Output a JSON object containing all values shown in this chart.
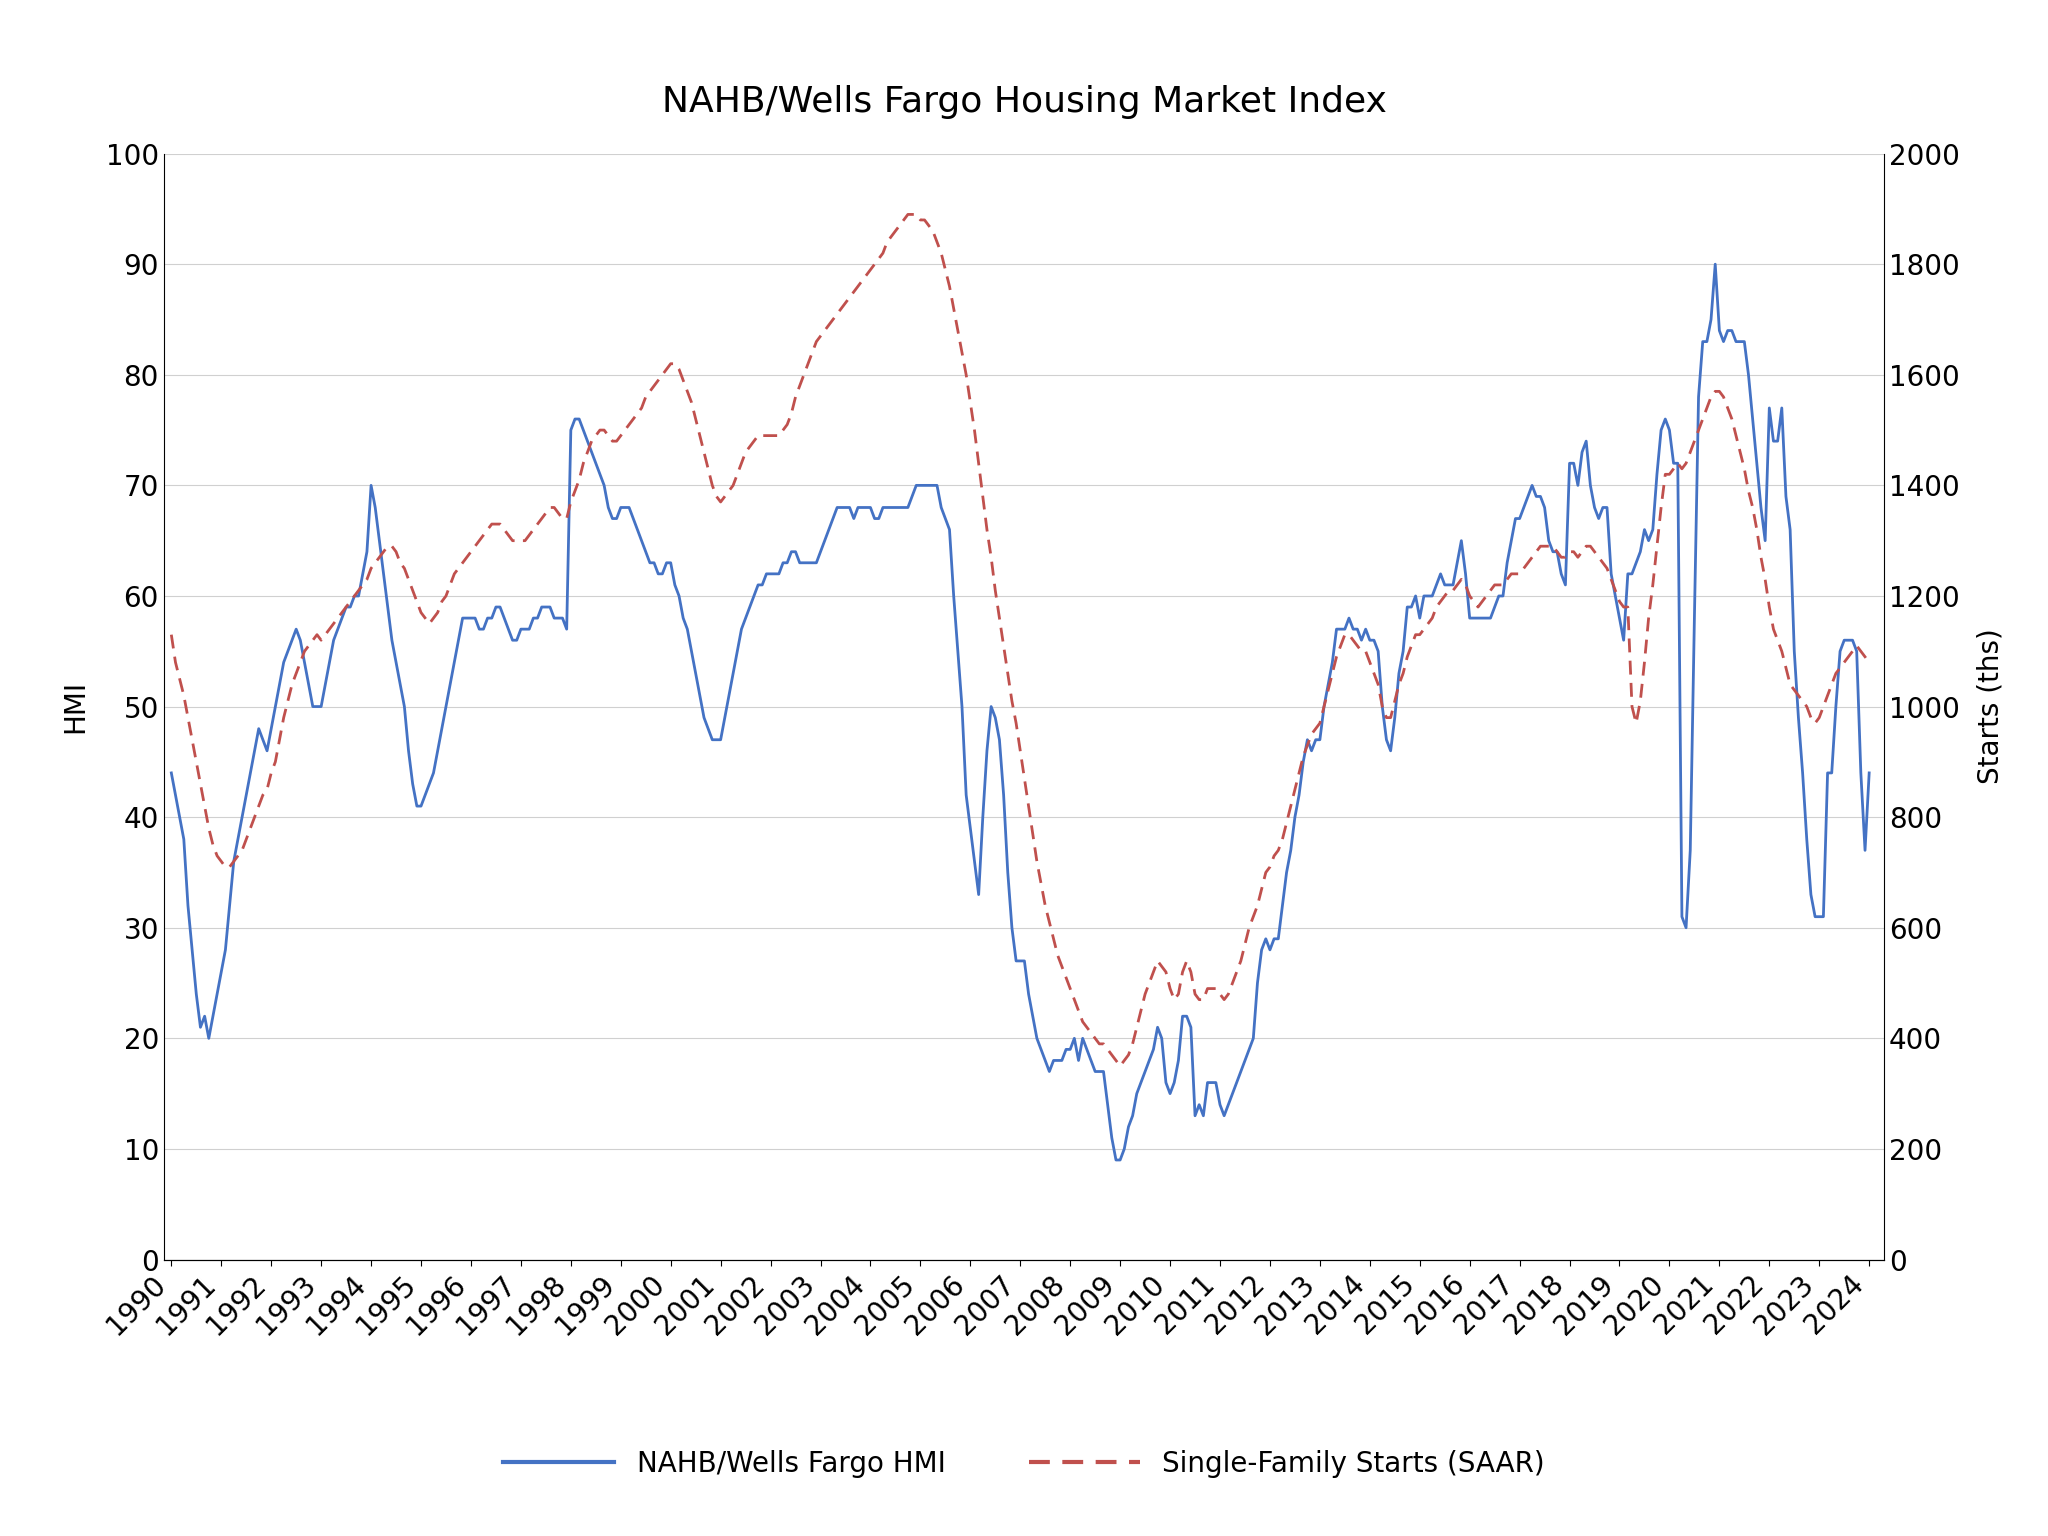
{
  "title": "NAHB/Wells Fargo Housing Market Index",
  "ylabel_left": "HMI",
  "ylabel_right": "Starts (ths)",
  "legend_hmi": "NAHB/Wells Fargo HMI",
  "legend_starts": "Single-Family Starts (SAAR)",
  "hmi_color": "#4472C4",
  "starts_color": "#C0504D",
  "background_color": "#FFFFFF",
  "ylim_left": [
    0,
    100
  ],
  "ylim_right": [
    0,
    2000
  ],
  "yticks_left": [
    0,
    10,
    20,
    30,
    40,
    50,
    60,
    70,
    80,
    90,
    100
  ],
  "yticks_right": [
    0,
    200,
    400,
    600,
    800,
    1000,
    1200,
    1400,
    1600,
    1800,
    2000
  ],
  "hmi_dates": [
    1990.0,
    1990.083,
    1990.167,
    1990.25,
    1990.333,
    1990.417,
    1990.5,
    1990.583,
    1990.667,
    1990.75,
    1990.833,
    1990.917,
    1991.0,
    1991.083,
    1991.167,
    1991.25,
    1991.333,
    1991.417,
    1991.5,
    1991.583,
    1991.667,
    1991.75,
    1991.833,
    1991.917,
    1992.0,
    1992.083,
    1992.167,
    1992.25,
    1992.333,
    1992.417,
    1992.5,
    1992.583,
    1992.667,
    1992.75,
    1992.833,
    1992.917,
    1993.0,
    1993.083,
    1993.167,
    1993.25,
    1993.333,
    1993.417,
    1993.5,
    1993.583,
    1993.667,
    1993.75,
    1993.833,
    1993.917,
    1994.0,
    1994.083,
    1994.167,
    1994.25,
    1994.333,
    1994.417,
    1994.5,
    1994.583,
    1994.667,
    1994.75,
    1994.833,
    1994.917,
    1995.0,
    1995.083,
    1995.167,
    1995.25,
    1995.333,
    1995.417,
    1995.5,
    1995.583,
    1995.667,
    1995.75,
    1995.833,
    1995.917,
    1996.0,
    1996.083,
    1996.167,
    1996.25,
    1996.333,
    1996.417,
    1996.5,
    1996.583,
    1996.667,
    1996.75,
    1996.833,
    1996.917,
    1997.0,
    1997.083,
    1997.167,
    1997.25,
    1997.333,
    1997.417,
    1997.5,
    1997.583,
    1997.667,
    1997.75,
    1997.833,
    1997.917,
    1998.0,
    1998.083,
    1998.167,
    1998.25,
    1998.333,
    1998.417,
    1998.5,
    1998.583,
    1998.667,
    1998.75,
    1998.833,
    1998.917,
    1999.0,
    1999.083,
    1999.167,
    1999.25,
    1999.333,
    1999.417,
    1999.5,
    1999.583,
    1999.667,
    1999.75,
    1999.833,
    1999.917,
    2000.0,
    2000.083,
    2000.167,
    2000.25,
    2000.333,
    2000.417,
    2000.5,
    2000.583,
    2000.667,
    2000.75,
    2000.833,
    2000.917,
    2001.0,
    2001.083,
    2001.167,
    2001.25,
    2001.333,
    2001.417,
    2001.5,
    2001.583,
    2001.667,
    2001.75,
    2001.833,
    2001.917,
    2002.0,
    2002.083,
    2002.167,
    2002.25,
    2002.333,
    2002.417,
    2002.5,
    2002.583,
    2002.667,
    2002.75,
    2002.833,
    2002.917,
    2003.0,
    2003.083,
    2003.167,
    2003.25,
    2003.333,
    2003.417,
    2003.5,
    2003.583,
    2003.667,
    2003.75,
    2003.833,
    2003.917,
    2004.0,
    2004.083,
    2004.167,
    2004.25,
    2004.333,
    2004.417,
    2004.5,
    2004.583,
    2004.667,
    2004.75,
    2004.833,
    2004.917,
    2005.0,
    2005.083,
    2005.167,
    2005.25,
    2005.333,
    2005.417,
    2005.5,
    2005.583,
    2005.667,
    2005.75,
    2005.833,
    2005.917,
    2006.0,
    2006.083,
    2006.167,
    2006.25,
    2006.333,
    2006.417,
    2006.5,
    2006.583,
    2006.667,
    2006.75,
    2006.833,
    2006.917,
    2007.0,
    2007.083,
    2007.167,
    2007.25,
    2007.333,
    2007.417,
    2007.5,
    2007.583,
    2007.667,
    2007.75,
    2007.833,
    2007.917,
    2008.0,
    2008.083,
    2008.167,
    2008.25,
    2008.333,
    2008.417,
    2008.5,
    2008.583,
    2008.667,
    2008.75,
    2008.833,
    2008.917,
    2009.0,
    2009.083,
    2009.167,
    2009.25,
    2009.333,
    2009.417,
    2009.5,
    2009.583,
    2009.667,
    2009.75,
    2009.833,
    2009.917,
    2010.0,
    2010.083,
    2010.167,
    2010.25,
    2010.333,
    2010.417,
    2010.5,
    2010.583,
    2010.667,
    2010.75,
    2010.833,
    2010.917,
    2011.0,
    2011.083,
    2011.167,
    2011.25,
    2011.333,
    2011.417,
    2011.5,
    2011.583,
    2011.667,
    2011.75,
    2011.833,
    2011.917,
    2012.0,
    2012.083,
    2012.167,
    2012.25,
    2012.333,
    2012.417,
    2012.5,
    2012.583,
    2012.667,
    2012.75,
    2012.833,
    2012.917,
    2013.0,
    2013.083,
    2013.167,
    2013.25,
    2013.333,
    2013.417,
    2013.5,
    2013.583,
    2013.667,
    2013.75,
    2013.833,
    2013.917,
    2014.0,
    2014.083,
    2014.167,
    2014.25,
    2014.333,
    2014.417,
    2014.5,
    2014.583,
    2014.667,
    2014.75,
    2014.833,
    2014.917,
    2015.0,
    2015.083,
    2015.167,
    2015.25,
    2015.333,
    2015.417,
    2015.5,
    2015.583,
    2015.667,
    2015.75,
    2015.833,
    2015.917,
    2016.0,
    2016.083,
    2016.167,
    2016.25,
    2016.333,
    2016.417,
    2016.5,
    2016.583,
    2016.667,
    2016.75,
    2016.833,
    2016.917,
    2017.0,
    2017.083,
    2017.167,
    2017.25,
    2017.333,
    2017.417,
    2017.5,
    2017.583,
    2017.667,
    2017.75,
    2017.833,
    2017.917,
    2018.0,
    2018.083,
    2018.167,
    2018.25,
    2018.333,
    2018.417,
    2018.5,
    2018.583,
    2018.667,
    2018.75,
    2018.833,
    2018.917,
    2019.0,
    2019.083,
    2019.167,
    2019.25,
    2019.333,
    2019.417,
    2019.5,
    2019.583,
    2019.667,
    2019.75,
    2019.833,
    2019.917,
    2020.0,
    2020.083,
    2020.167,
    2020.25,
    2020.333,
    2020.417,
    2020.5,
    2020.583,
    2020.667,
    2020.75,
    2020.833,
    2020.917,
    2021.0,
    2021.083,
    2021.167,
    2021.25,
    2021.333,
    2021.417,
    2021.5,
    2021.583,
    2021.667,
    2021.75,
    2021.833,
    2021.917,
    2022.0,
    2022.083,
    2022.167,
    2022.25,
    2022.333,
    2022.417,
    2022.5,
    2022.583,
    2022.667,
    2022.75,
    2022.833,
    2022.917,
    2023.0,
    2023.083,
    2023.167,
    2023.25,
    2023.333,
    2023.417,
    2023.5,
    2023.583,
    2023.667,
    2023.75,
    2023.833,
    2023.917,
    2024.0
  ],
  "hmi_values": [
    44,
    42,
    40,
    38,
    32,
    28,
    24,
    21,
    22,
    20,
    22,
    24,
    26,
    28,
    32,
    36,
    38,
    40,
    42,
    44,
    46,
    48,
    47,
    46,
    48,
    50,
    52,
    54,
    55,
    56,
    57,
    56,
    54,
    52,
    50,
    50,
    50,
    52,
    54,
    56,
    57,
    58,
    59,
    59,
    60,
    60,
    62,
    64,
    70,
    68,
    65,
    62,
    59,
    56,
    54,
    52,
    50,
    46,
    43,
    41,
    41,
    42,
    43,
    44,
    46,
    48,
    50,
    52,
    54,
    56,
    58,
    58,
    58,
    58,
    57,
    57,
    58,
    58,
    59,
    59,
    58,
    57,
    56,
    56,
    57,
    57,
    57,
    58,
    58,
    59,
    59,
    59,
    58,
    58,
    58,
    57,
    75,
    76,
    76,
    75,
    74,
    73,
    72,
    71,
    70,
    68,
    67,
    67,
    68,
    68,
    68,
    67,
    66,
    65,
    64,
    63,
    63,
    62,
    62,
    63,
    63,
    61,
    60,
    58,
    57,
    55,
    53,
    51,
    49,
    48,
    47,
    47,
    47,
    49,
    51,
    53,
    55,
    57,
    58,
    59,
    60,
    61,
    61,
    62,
    62,
    62,
    62,
    63,
    63,
    64,
    64,
    63,
    63,
    63,
    63,
    63,
    64,
    65,
    66,
    67,
    68,
    68,
    68,
    68,
    67,
    68,
    68,
    68,
    68,
    67,
    67,
    68,
    68,
    68,
    68,
    68,
    68,
    68,
    69,
    70,
    70,
    70,
    70,
    70,
    70,
    68,
    67,
    66,
    60,
    55,
    50,
    42,
    39,
    36,
    33,
    40,
    46,
    50,
    49,
    47,
    42,
    35,
    30,
    27,
    27,
    27,
    24,
    22,
    20,
    19,
    18,
    17,
    18,
    18,
    18,
    19,
    19,
    20,
    18,
    20,
    19,
    18,
    17,
    17,
    17,
    14,
    11,
    9,
    9,
    10,
    12,
    13,
    15,
    16,
    17,
    18,
    19,
    21,
    20,
    16,
    15,
    16,
    18,
    22,
    22,
    21,
    13,
    14,
    13,
    16,
    16,
    16,
    14,
    13,
    14,
    15,
    16,
    17,
    18,
    19,
    20,
    25,
    28,
    29,
    28,
    29,
    29,
    32,
    35,
    37,
    40,
    42,
    45,
    47,
    46,
    47,
    47,
    50,
    52,
    54,
    57,
    57,
    57,
    58,
    57,
    57,
    56,
    57,
    56,
    56,
    55,
    50,
    47,
    46,
    49,
    53,
    55,
    59,
    59,
    60,
    58,
    60,
    60,
    60,
    61,
    62,
    61,
    61,
    61,
    63,
    65,
    62,
    58,
    58,
    58,
    58,
    58,
    58,
    59,
    60,
    60,
    63,
    65,
    67,
    67,
    68,
    69,
    70,
    69,
    69,
    68,
    65,
    64,
    64,
    62,
    61,
    72,
    72,
    70,
    73,
    74,
    70,
    68,
    67,
    68,
    68,
    62,
    60,
    58,
    56,
    62,
    62,
    63,
    64,
    66,
    65,
    66,
    71,
    75,
    76,
    75,
    72,
    72,
    31,
    30,
    37,
    58,
    78,
    83,
    83,
    85,
    90,
    84,
    83,
    84,
    84,
    83,
    83,
    83,
    80,
    76,
    72,
    68,
    65,
    77,
    74,
    74,
    77,
    69,
    66,
    55,
    49,
    44,
    38,
    33,
    31,
    31,
    31,
    44,
    44,
    50,
    55,
    56,
    56,
    56,
    55,
    44,
    37,
    44
  ],
  "starts_dates": [
    1990.0,
    1990.083,
    1990.167,
    1990.25,
    1990.333,
    1990.417,
    1990.5,
    1990.583,
    1990.667,
    1990.75,
    1990.833,
    1990.917,
    1991.0,
    1991.083,
    1991.167,
    1991.25,
    1991.333,
    1991.417,
    1991.5,
    1991.583,
    1991.667,
    1991.75,
    1991.833,
    1991.917,
    1992.0,
    1992.083,
    1992.167,
    1992.25,
    1992.333,
    1992.417,
    1992.5,
    1992.583,
    1992.667,
    1992.75,
    1992.833,
    1992.917,
    1993.0,
    1993.083,
    1993.167,
    1993.25,
    1993.333,
    1993.417,
    1993.5,
    1993.583,
    1993.667,
    1993.75,
    1993.833,
    1993.917,
    1994.0,
    1994.083,
    1994.167,
    1994.25,
    1994.333,
    1994.417,
    1994.5,
    1994.583,
    1994.667,
    1994.75,
    1994.833,
    1994.917,
    1995.0,
    1995.083,
    1995.167,
    1995.25,
    1995.333,
    1995.417,
    1995.5,
    1995.583,
    1995.667,
    1995.75,
    1995.833,
    1995.917,
    1996.0,
    1996.083,
    1996.167,
    1996.25,
    1996.333,
    1996.417,
    1996.5,
    1996.583,
    1996.667,
    1996.75,
    1996.833,
    1996.917,
    1997.0,
    1997.083,
    1997.167,
    1997.25,
    1997.333,
    1997.417,
    1997.5,
    1997.583,
    1997.667,
    1997.75,
    1997.833,
    1997.917,
    1998.0,
    1998.083,
    1998.167,
    1998.25,
    1998.333,
    1998.417,
    1998.5,
    1998.583,
    1998.667,
    1998.75,
    1998.833,
    1998.917,
    1999.0,
    1999.083,
    1999.167,
    1999.25,
    1999.333,
    1999.417,
    1999.5,
    1999.583,
    1999.667,
    1999.75,
    1999.833,
    1999.917,
    2000.0,
    2000.083,
    2000.167,
    2000.25,
    2000.333,
    2000.417,
    2000.5,
    2000.583,
    2000.667,
    2000.75,
    2000.833,
    2000.917,
    2001.0,
    2001.083,
    2001.167,
    2001.25,
    2001.333,
    2001.417,
    2001.5,
    2001.583,
    2001.667,
    2001.75,
    2001.833,
    2001.917,
    2002.0,
    2002.083,
    2002.167,
    2002.25,
    2002.333,
    2002.417,
    2002.5,
    2002.583,
    2002.667,
    2002.75,
    2002.833,
    2002.917,
    2003.0,
    2003.083,
    2003.167,
    2003.25,
    2003.333,
    2003.417,
    2003.5,
    2003.583,
    2003.667,
    2003.75,
    2003.833,
    2003.917,
    2004.0,
    2004.083,
    2004.167,
    2004.25,
    2004.333,
    2004.417,
    2004.5,
    2004.583,
    2004.667,
    2004.75,
    2004.833,
    2004.917,
    2005.0,
    2005.083,
    2005.167,
    2005.25,
    2005.333,
    2005.417,
    2005.5,
    2005.583,
    2005.667,
    2005.75,
    2005.833,
    2005.917,
    2006.0,
    2006.083,
    2006.167,
    2006.25,
    2006.333,
    2006.417,
    2006.5,
    2006.583,
    2006.667,
    2006.75,
    2006.833,
    2006.917,
    2007.0,
    2007.083,
    2007.167,
    2007.25,
    2007.333,
    2007.417,
    2007.5,
    2007.583,
    2007.667,
    2007.75,
    2007.833,
    2007.917,
    2008.0,
    2008.083,
    2008.167,
    2008.25,
    2008.333,
    2008.417,
    2008.5,
    2008.583,
    2008.667,
    2008.75,
    2008.833,
    2008.917,
    2009.0,
    2009.083,
    2009.167,
    2009.25,
    2009.333,
    2009.417,
    2009.5,
    2009.583,
    2009.667,
    2009.75,
    2009.833,
    2009.917,
    2010.0,
    2010.083,
    2010.167,
    2010.25,
    2010.333,
    2010.417,
    2010.5,
    2010.583,
    2010.667,
    2010.75,
    2010.833,
    2010.917,
    2011.0,
    2011.083,
    2011.167,
    2011.25,
    2011.333,
    2011.417,
    2011.5,
    2011.583,
    2011.667,
    2011.75,
    2011.833,
    2011.917,
    2012.0,
    2012.083,
    2012.167,
    2012.25,
    2012.333,
    2012.417,
    2012.5,
    2012.583,
    2012.667,
    2012.75,
    2012.833,
    2012.917,
    2013.0,
    2013.083,
    2013.167,
    2013.25,
    2013.333,
    2013.417,
    2013.5,
    2013.583,
    2013.667,
    2013.75,
    2013.833,
    2013.917,
    2014.0,
    2014.083,
    2014.167,
    2014.25,
    2014.333,
    2014.417,
    2014.5,
    2014.583,
    2014.667,
    2014.75,
    2014.833,
    2014.917,
    2015.0,
    2015.083,
    2015.167,
    2015.25,
    2015.333,
    2015.417,
    2015.5,
    2015.583,
    2015.667,
    2015.75,
    2015.833,
    2015.917,
    2016.0,
    2016.083,
    2016.167,
    2016.25,
    2016.333,
    2016.417,
    2016.5,
    2016.583,
    2016.667,
    2016.75,
    2016.833,
    2016.917,
    2017.0,
    2017.083,
    2017.167,
    2017.25,
    2017.333,
    2017.417,
    2017.5,
    2017.583,
    2017.667,
    2017.75,
    2017.833,
    2017.917,
    2018.0,
    2018.083,
    2018.167,
    2018.25,
    2018.333,
    2018.417,
    2018.5,
    2018.583,
    2018.667,
    2018.75,
    2018.833,
    2018.917,
    2019.0,
    2019.083,
    2019.167,
    2019.25,
    2019.333,
    2019.417,
    2019.5,
    2019.583,
    2019.667,
    2019.75,
    2019.833,
    2019.917,
    2020.0,
    2020.083,
    2020.167,
    2020.25,
    2020.333,
    2020.417,
    2020.5,
    2020.583,
    2020.667,
    2020.75,
    2020.833,
    2020.917,
    2021.0,
    2021.083,
    2021.167,
    2021.25,
    2021.333,
    2021.417,
    2021.5,
    2021.583,
    2021.667,
    2021.75,
    2021.833,
    2021.917,
    2022.0,
    2022.083,
    2022.167,
    2022.25,
    2022.333,
    2022.417,
    2022.5,
    2022.583,
    2022.667,
    2022.75,
    2022.833,
    2022.917,
    2023.0,
    2023.083,
    2023.167,
    2023.25,
    2023.333,
    2023.417,
    2023.5,
    2023.583,
    2023.667,
    2023.75,
    2023.833,
    2023.917,
    2024.0
  ],
  "starts_values": [
    1130,
    1080,
    1050,
    1020,
    980,
    940,
    900,
    860,
    820,
    780,
    750,
    730,
    720,
    710,
    710,
    720,
    730,
    740,
    760,
    780,
    800,
    820,
    840,
    850,
    880,
    900,
    940,
    980,
    1010,
    1040,
    1060,
    1080,
    1100,
    1110,
    1120,
    1130,
    1120,
    1130,
    1140,
    1150,
    1160,
    1170,
    1180,
    1190,
    1200,
    1210,
    1220,
    1230,
    1250,
    1260,
    1270,
    1280,
    1290,
    1290,
    1280,
    1260,
    1250,
    1230,
    1210,
    1190,
    1170,
    1160,
    1150,
    1160,
    1170,
    1190,
    1200,
    1220,
    1240,
    1250,
    1260,
    1270,
    1280,
    1290,
    1300,
    1310,
    1320,
    1330,
    1330,
    1330,
    1320,
    1310,
    1300,
    1300,
    1300,
    1300,
    1310,
    1320,
    1330,
    1340,
    1350,
    1360,
    1360,
    1350,
    1340,
    1340,
    1370,
    1390,
    1410,
    1440,
    1460,
    1480,
    1490,
    1500,
    1500,
    1490,
    1480,
    1480,
    1490,
    1500,
    1510,
    1520,
    1530,
    1540,
    1560,
    1570,
    1580,
    1590,
    1600,
    1610,
    1620,
    1620,
    1610,
    1590,
    1570,
    1550,
    1520,
    1490,
    1460,
    1430,
    1400,
    1380,
    1370,
    1380,
    1390,
    1400,
    1420,
    1440,
    1460,
    1470,
    1480,
    1490,
    1490,
    1490,
    1490,
    1490,
    1490,
    1500,
    1510,
    1530,
    1560,
    1580,
    1600,
    1620,
    1640,
    1660,
    1670,
    1680,
    1690,
    1700,
    1710,
    1720,
    1730,
    1740,
    1750,
    1760,
    1770,
    1780,
    1790,
    1800,
    1810,
    1820,
    1840,
    1850,
    1860,
    1870,
    1880,
    1890,
    1890,
    1890,
    1880,
    1880,
    1870,
    1860,
    1840,
    1820,
    1790,
    1760,
    1720,
    1680,
    1640,
    1600,
    1550,
    1500,
    1440,
    1380,
    1320,
    1270,
    1210,
    1160,
    1110,
    1060,
    1010,
    970,
    920,
    870,
    820,
    770,
    720,
    680,
    640,
    610,
    580,
    550,
    530,
    510,
    490,
    470,
    450,
    430,
    420,
    410,
    400,
    390,
    390,
    380,
    370,
    360,
    350,
    360,
    370,
    390,
    420,
    450,
    480,
    500,
    520,
    540,
    530,
    520,
    490,
    470,
    480,
    520,
    540,
    520,
    480,
    470,
    470,
    490,
    490,
    490,
    480,
    470,
    480,
    500,
    520,
    540,
    570,
    600,
    620,
    640,
    670,
    700,
    710,
    730,
    740,
    760,
    790,
    820,
    850,
    880,
    910,
    930,
    950,
    960,
    970,
    1000,
    1030,
    1060,
    1090,
    1110,
    1130,
    1130,
    1120,
    1110,
    1100,
    1100,
    1080,
    1060,
    1040,
    1000,
    980,
    980,
    1010,
    1040,
    1060,
    1090,
    1110,
    1130,
    1130,
    1140,
    1150,
    1160,
    1180,
    1190,
    1200,
    1210,
    1210,
    1220,
    1230,
    1220,
    1200,
    1190,
    1180,
    1190,
    1200,
    1210,
    1220,
    1220,
    1220,
    1230,
    1240,
    1240,
    1240,
    1250,
    1260,
    1270,
    1280,
    1290,
    1290,
    1290,
    1290,
    1280,
    1270,
    1270,
    1280,
    1280,
    1270,
    1280,
    1290,
    1290,
    1280,
    1270,
    1260,
    1250,
    1230,
    1210,
    1190,
    1180,
    1180,
    1000,
    970,
    1010,
    1080,
    1160,
    1220,
    1290,
    1360,
    1420,
    1420,
    1430,
    1440,
    1430,
    1440,
    1460,
    1480,
    1500,
    1520,
    1540,
    1560,
    1570,
    1570,
    1560,
    1540,
    1520,
    1490,
    1460,
    1430,
    1390,
    1360,
    1320,
    1270,
    1230,
    1180,
    1140,
    1120,
    1100,
    1070,
    1040,
    1030,
    1020,
    1010,
    1000,
    980,
    970,
    980,
    1000,
    1020,
    1040,
    1060,
    1070,
    1080,
    1090,
    1100,
    1110,
    1100,
    1090,
    1080
  ],
  "xtick_years": [
    1990,
    1991,
    1992,
    1993,
    1994,
    1995,
    1996,
    1997,
    1998,
    1999,
    2000,
    2001,
    2002,
    2003,
    2004,
    2005,
    2006,
    2007,
    2008,
    2009,
    2010,
    2011,
    2012,
    2013,
    2014,
    2015,
    2016,
    2017,
    2018,
    2019,
    2020,
    2021,
    2022,
    2023,
    2024
  ],
  "title_fontsize": 26,
  "axis_label_fontsize": 20,
  "tick_fontsize": 20,
  "legend_fontsize": 20,
  "line_width": 2.0,
  "grid_color": "#D0D0D0",
  "xlim": [
    1989.85,
    2024.3
  ]
}
